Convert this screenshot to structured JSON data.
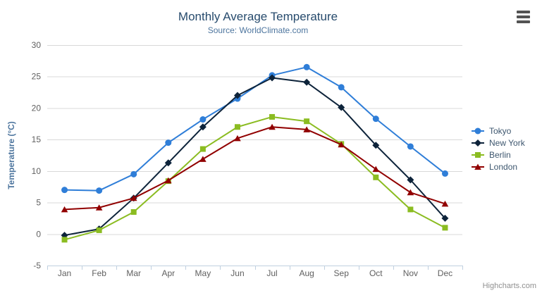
{
  "header": {
    "title": "Monthly Average Temperature",
    "subtitle": "Source: WorldClimate.com"
  },
  "icons": {
    "export_menu": "hamburger-menu-icon"
  },
  "credits": {
    "label": "Highcharts.com"
  },
  "colors": {
    "title": "#274b6d",
    "subtitle": "#4d759e",
    "axis_label": "#606060",
    "axis_title": "#4d759e",
    "grid": "#d8d8d8",
    "axis_line": "#c0d0e0",
    "legend_text": "#3e576f",
    "credits": "#909090",
    "background": "#ffffff"
  },
  "chart_data": {
    "type": "line",
    "title": "Monthly Average Temperature",
    "subtitle": "Source: WorldClimate.com",
    "categories": [
      "Jan",
      "Feb",
      "Mar",
      "Apr",
      "May",
      "Jun",
      "Jul",
      "Aug",
      "Sep",
      "Oct",
      "Nov",
      "Dec"
    ],
    "xlabel": "",
    "ylabel": "Temperature (°C)",
    "ylim": [
      -5,
      30
    ],
    "yticks": [
      30,
      25,
      20,
      15,
      10,
      5,
      0,
      -5
    ],
    "grid": true,
    "legend_position": "right",
    "series": [
      {
        "name": "Tokyo",
        "color": "#2f7ed8",
        "marker": "circle",
        "values": [
          7.0,
          6.9,
          9.5,
          14.5,
          18.2,
          21.5,
          25.2,
          26.5,
          23.3,
          18.3,
          13.9,
          9.6
        ]
      },
      {
        "name": "New York",
        "color": "#0d233a",
        "marker": "diamond",
        "values": [
          -0.2,
          0.8,
          5.7,
          11.3,
          17.0,
          22.0,
          24.8,
          24.1,
          20.1,
          14.1,
          8.6,
          2.5
        ]
      },
      {
        "name": "Berlin",
        "color": "#8bbc21",
        "marker": "square",
        "values": [
          -0.9,
          0.6,
          3.5,
          8.4,
          13.5,
          17.0,
          18.6,
          17.9,
          14.3,
          9.0,
          3.9,
          1.0
        ]
      },
      {
        "name": "London",
        "color": "#910000",
        "marker": "triangle",
        "values": [
          3.9,
          4.2,
          5.7,
          8.5,
          11.9,
          15.2,
          17.0,
          16.6,
          14.2,
          10.3,
          6.6,
          4.8
        ]
      }
    ]
  }
}
